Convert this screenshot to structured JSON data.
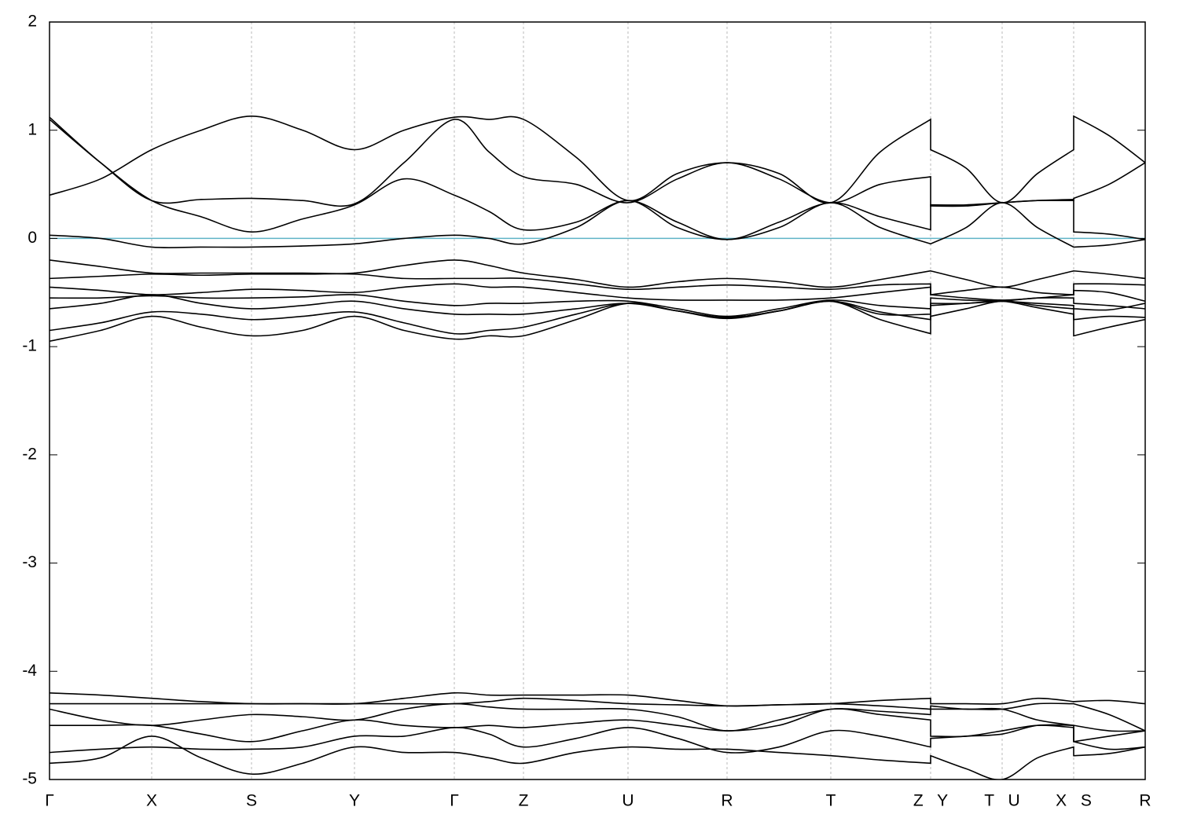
{
  "chart_data": {
    "type": "line",
    "color": "#000000",
    "fermi_level": 0,
    "fermi_color": "#5fb3c6",
    "grid": true,
    "xlim": [
      0,
      1394
    ],
    "xticks": [
      {
        "value": 0,
        "label": "Γ"
      },
      {
        "value": 130,
        "label": "X"
      },
      {
        "value": 257,
        "label": "S"
      },
      {
        "value": 388,
        "label": "Y"
      },
      {
        "value": 515,
        "label": "Γ"
      },
      {
        "value": 603,
        "label": "Z"
      },
      {
        "value": 736,
        "label": "U"
      },
      {
        "value": 862,
        "label": "R"
      },
      {
        "value": 994,
        "label": "T"
      },
      {
        "value": 1121,
        "label": "Z Y"
      },
      {
        "value": 1212,
        "label": "T U"
      },
      {
        "value": 1303,
        "label": "X S"
      },
      {
        "value": 1394,
        "label": "R"
      }
    ],
    "ylim": [
      -5,
      2
    ],
    "yticks": [
      -5,
      -4,
      -3,
      -2,
      -1,
      0,
      1,
      2
    ],
    "x": [
      0,
      65,
      130,
      193,
      257,
      322,
      388,
      451,
      515,
      559,
      603,
      670,
      736,
      799,
      862,
      928,
      994,
      1057,
      1121,
      1121,
      1166,
      1212,
      1257,
      1303,
      1303,
      1348,
      1394
    ],
    "series": [
      {
        "values": [
          0.4,
          0.55,
          0.82,
          1.0,
          1.13,
          1.0,
          0.82,
          1.0,
          1.12,
          1.1,
          1.1,
          0.75,
          0.35,
          0.6,
          0.7,
          0.6,
          0.33,
          0.8,
          1.1,
          0.82,
          0.65,
          0.33,
          0.6,
          0.82,
          1.13,
          0.95,
          0.7
        ]
      },
      {
        "values": [
          1.12,
          0.7,
          0.35,
          0.36,
          0.37,
          0.35,
          0.32,
          0.7,
          1.1,
          0.8,
          0.57,
          0.5,
          0.33,
          0.55,
          0.7,
          0.55,
          0.33,
          0.5,
          0.57,
          0.3,
          0.3,
          0.33,
          0.35,
          0.35,
          0.37,
          0.5,
          0.7
        ]
      },
      {
        "values": [
          1.1,
          0.7,
          0.35,
          0.2,
          0.06,
          0.18,
          0.31,
          0.55,
          0.4,
          0.25,
          0.08,
          0.15,
          0.35,
          0.15,
          -0.01,
          0.15,
          0.33,
          0.2,
          0.08,
          0.31,
          0.31,
          0.33,
          0.35,
          0.36,
          0.06,
          0.04,
          -0.01
        ]
      },
      {
        "values": [
          0.03,
          0.0,
          -0.08,
          -0.08,
          -0.08,
          -0.07,
          -0.05,
          0.0,
          0.03,
          0.0,
          -0.05,
          0.1,
          0.35,
          0.1,
          -0.01,
          0.1,
          0.33,
          0.1,
          -0.05,
          -0.05,
          0.1,
          0.33,
          0.1,
          -0.08,
          -0.08,
          -0.06,
          -0.01
        ]
      },
      {
        "values": [
          -0.2,
          -0.26,
          -0.32,
          -0.32,
          -0.32,
          -0.32,
          -0.32,
          -0.25,
          -0.2,
          -0.25,
          -0.32,
          -0.38,
          -0.45,
          -0.4,
          -0.37,
          -0.4,
          -0.45,
          -0.38,
          -0.3,
          -0.3,
          -0.38,
          -0.45,
          -0.38,
          -0.3,
          -0.3,
          -0.33,
          -0.37
        ]
      },
      {
        "values": [
          -0.37,
          -0.35,
          -0.33,
          -0.34,
          -0.33,
          -0.33,
          -0.33,
          -0.37,
          -0.37,
          -0.37,
          -0.37,
          -0.42,
          -0.47,
          -0.45,
          -0.43,
          -0.45,
          -0.47,
          -0.43,
          -0.42,
          -0.52,
          -0.48,
          -0.45,
          -0.5,
          -0.52,
          -0.42,
          -0.42,
          -0.43
        ]
      },
      {
        "values": [
          -0.45,
          -0.48,
          -0.52,
          -0.5,
          -0.47,
          -0.48,
          -0.5,
          -0.45,
          -0.42,
          -0.45,
          -0.45,
          -0.5,
          -0.55,
          -0.57,
          -0.57,
          -0.57,
          -0.55,
          -0.5,
          -0.45,
          -0.52,
          -0.55,
          -0.57,
          -0.55,
          -0.52,
          -0.48,
          -0.5,
          -0.58
        ]
      },
      {
        "values": [
          -0.55,
          -0.55,
          -0.53,
          -0.55,
          -0.55,
          -0.54,
          -0.52,
          -0.58,
          -0.62,
          -0.6,
          -0.6,
          -0.58,
          -0.58,
          -0.65,
          -0.72,
          -0.65,
          -0.57,
          -0.62,
          -0.65,
          -0.55,
          -0.57,
          -0.58,
          -0.6,
          -0.62,
          -0.65,
          -0.66,
          -0.6
        ]
      },
      {
        "values": [
          -0.65,
          -0.6,
          -0.52,
          -0.6,
          -0.65,
          -0.62,
          -0.58,
          -0.65,
          -0.7,
          -0.7,
          -0.7,
          -0.65,
          -0.6,
          -0.67,
          -0.73,
          -0.67,
          -0.58,
          -0.68,
          -0.75,
          -0.6,
          -0.6,
          -0.58,
          -0.64,
          -0.7,
          -0.75,
          -0.72,
          -0.73
        ]
      },
      {
        "values": [
          -0.85,
          -0.78,
          -0.68,
          -0.7,
          -0.75,
          -0.72,
          -0.68,
          -0.78,
          -0.88,
          -0.85,
          -0.82,
          -0.7,
          -0.6,
          -0.67,
          -0.73,
          -0.67,
          -0.58,
          -0.75,
          -0.88,
          -0.72,
          -0.65,
          -0.58,
          -0.62,
          -0.65,
          -0.9,
          -0.82,
          -0.75
        ]
      },
      {
        "values": [
          -0.95,
          -0.85,
          -0.72,
          -0.82,
          -0.9,
          -0.85,
          -0.72,
          -0.85,
          -0.93,
          -0.9,
          -0.9,
          -0.75,
          -0.6,
          -0.67,
          -0.74,
          -0.67,
          -0.58,
          -0.7,
          -0.7,
          -0.62,
          -0.6,
          -0.58,
          -0.55,
          -0.55,
          -0.6,
          -0.62,
          -0.65
        ]
      },
      {
        "values": [
          -4.2,
          -4.22,
          -4.25,
          -4.28,
          -4.3,
          -4.3,
          -4.3,
          -4.25,
          -4.2,
          -4.22,
          -4.22,
          -4.22,
          -4.22,
          -4.27,
          -4.32,
          -4.31,
          -4.3,
          -4.27,
          -4.25,
          -4.3,
          -4.3,
          -4.3,
          -4.25,
          -4.28,
          -4.28,
          -4.27,
          -4.3
        ]
      },
      {
        "values": [
          -4.3,
          -4.3,
          -4.3,
          -4.3,
          -4.3,
          -4.3,
          -4.3,
          -4.3,
          -4.3,
          -4.28,
          -4.25,
          -4.27,
          -4.3,
          -4.31,
          -4.32,
          -4.31,
          -4.3,
          -4.32,
          -4.35,
          -4.35,
          -4.35,
          -4.35,
          -4.3,
          -4.3,
          -4.3,
          -4.4,
          -4.55
        ]
      },
      {
        "values": [
          -4.35,
          -4.45,
          -4.5,
          -4.45,
          -4.4,
          -4.42,
          -4.45,
          -4.35,
          -4.3,
          -4.33,
          -4.35,
          -4.35,
          -4.35,
          -4.42,
          -4.55,
          -4.45,
          -4.35,
          -4.37,
          -4.4,
          -4.32,
          -4.35,
          -4.35,
          -4.45,
          -4.5,
          -4.5,
          -4.55,
          -4.55
        ]
      },
      {
        "values": [
          -4.5,
          -4.5,
          -4.5,
          -4.58,
          -4.65,
          -4.55,
          -4.45,
          -4.5,
          -4.52,
          -4.5,
          -4.52,
          -4.48,
          -4.45,
          -4.5,
          -4.55,
          -4.5,
          -4.35,
          -4.4,
          -4.45,
          -4.6,
          -4.6,
          -4.55,
          -4.5,
          -4.52,
          -4.65,
          -4.6,
          -4.55
        ]
      },
      {
        "values": [
          -4.75,
          -4.72,
          -4.7,
          -4.72,
          -4.72,
          -4.7,
          -4.6,
          -4.6,
          -4.52,
          -4.58,
          -4.7,
          -4.62,
          -4.52,
          -4.62,
          -4.75,
          -4.7,
          -4.55,
          -4.6,
          -4.7,
          -4.62,
          -4.6,
          -4.58,
          -4.5,
          -4.5,
          -4.65,
          -4.72,
          -4.7
        ]
      },
      {
        "values": [
          -4.85,
          -4.8,
          -4.6,
          -4.8,
          -4.95,
          -4.85,
          -4.7,
          -4.75,
          -4.75,
          -4.8,
          -4.85,
          -4.75,
          -4.7,
          -4.72,
          -4.72,
          -4.75,
          -4.78,
          -4.82,
          -4.85,
          -4.78,
          -4.9,
          -5.0,
          -4.8,
          -4.7,
          -4.78,
          -4.76,
          -4.7
        ]
      }
    ]
  }
}
